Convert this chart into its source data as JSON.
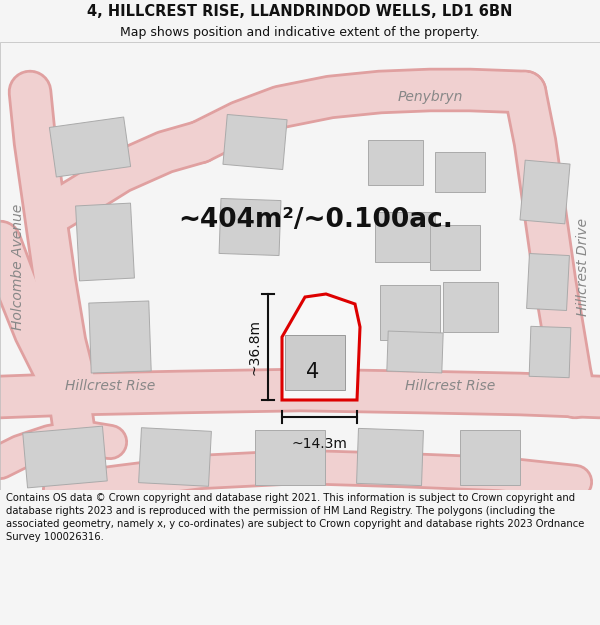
{
  "title_line1": "4, HILLCREST RISE, LLANDRINDOD WELLS, LD1 6BN",
  "title_line2": "Map shows position and indicative extent of the property.",
  "area_label": "~404m²/~0.100ac.",
  "width_label": "~14.3m",
  "height_label": "~36.8m",
  "plot_number": "4",
  "street_hillcrest_left": "Hillcrest Rise",
  "street_hillcrest_right": "Hillcrest Rise",
  "street_penybryn": "Penybryn",
  "street_holcombe": "Holcombe Avenue",
  "street_hillcrest_drive": "Hillcrest Drive",
  "footer_text": "Contains OS data © Crown copyright and database right 2021. This information is subject to Crown copyright and database rights 2023 and is reproduced with the permission of HM Land Registry. The polygons (including the associated geometry, namely x, y co-ordinates) are subject to Crown copyright and database rights 2023 Ordnance Survey 100026316.",
  "bg_color": "#f5f5f5",
  "map_bg": "#ffffff",
  "plot_edge": "#dd0000",
  "plot_fill": "#f8f8f8",
  "road_fill": "#f0d0d0",
  "road_edge": "#e0a0a0",
  "building_fill": "#d0d0d0",
  "building_edge": "#aaaaaa",
  "dim_color": "#111111",
  "text_color": "#111111",
  "street_color": "#888888",
  "title_fontsize": 10.5,
  "subtitle_fontsize": 9.0,
  "footer_fontsize": 7.2,
  "area_fontsize": 19,
  "dim_fontsize": 10,
  "plot_num_fontsize": 15,
  "street_fontsize": 10
}
